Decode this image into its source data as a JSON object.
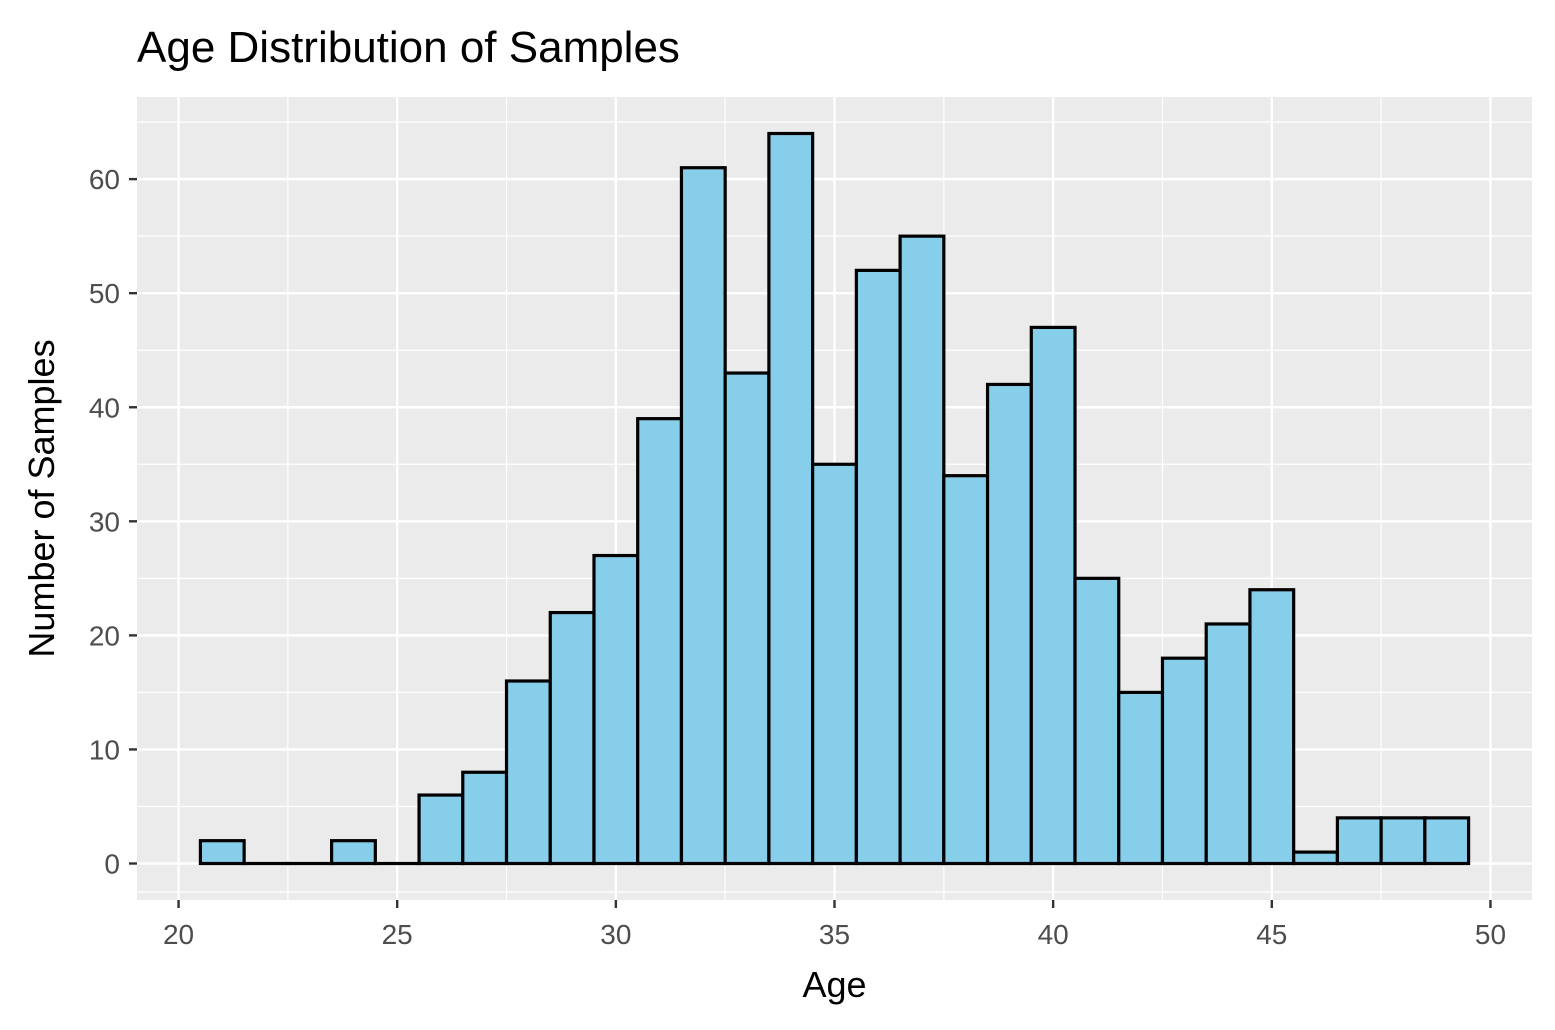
{
  "chart_data": {
    "type": "bar",
    "subtype": "histogram",
    "title": "Age Distribution of Samples",
    "xlabel": "Age",
    "ylabel": "Number of Samples",
    "bin_width": 1,
    "x": [
      21,
      22,
      23,
      24,
      25,
      26,
      27,
      28,
      29,
      30,
      31,
      32,
      33,
      34,
      35,
      36,
      37,
      38,
      39,
      40,
      41,
      42,
      43,
      44,
      45,
      46,
      47,
      48,
      49
    ],
    "values": [
      2,
      0,
      0,
      2,
      0,
      6,
      8,
      16,
      22,
      27,
      39,
      61,
      43,
      64,
      35,
      52,
      55,
      34,
      42,
      47,
      25,
      15,
      18,
      21,
      24,
      1,
      4,
      4,
      4
    ],
    "xlim": [
      19.05,
      50.95
    ],
    "ylim": [
      -3.2,
      67.2
    ],
    "x_ticks": [
      20,
      25,
      30,
      35,
      40,
      45,
      50
    ],
    "x_tick_labels": [
      "20",
      "25",
      "30",
      "35",
      "40",
      "45",
      "50"
    ],
    "y_ticks": [
      0,
      10,
      20,
      30,
      40,
      50,
      60
    ],
    "y_tick_labels": [
      "0",
      "10",
      "20",
      "30",
      "40",
      "50",
      "60"
    ],
    "grid": true,
    "legend": "none",
    "colors": {
      "bar_fill": "#87CEEB",
      "bar_stroke": "#000000",
      "panel_background": "#EBEBEB",
      "grid_major": "#FFFFFF",
      "grid_minor": "#FFFFFF"
    }
  }
}
